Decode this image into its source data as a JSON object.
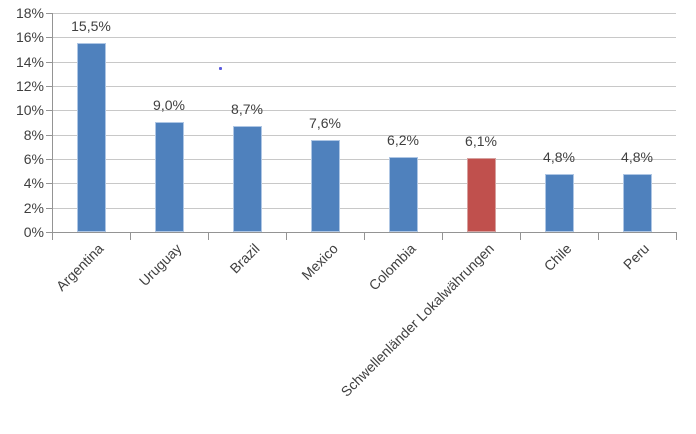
{
  "chart_data": {
    "type": "bar",
    "title": "",
    "xlabel": "",
    "ylabel": "",
    "categories": [
      "Argentina",
      "Uruguay",
      "Brazil",
      "Mexico",
      "Colombia",
      "Schwellenländer Lokalwährungen",
      "Chile",
      "Peru"
    ],
    "values": [
      15.5,
      9.0,
      8.7,
      7.6,
      6.2,
      6.1,
      4.8,
      4.8
    ],
    "value_labels": [
      "15,5%",
      "9,0%",
      "8,7%",
      "7,6%",
      "6,2%",
      "6,1%",
      "4,8%",
      "4,8%"
    ],
    "ylim": [
      0,
      18
    ],
    "ytick_step": 2,
    "ytick_labels": [
      "0%",
      "2%",
      "4%",
      "6%",
      "8%",
      "10%",
      "12%",
      "14%",
      "16%",
      "18%"
    ],
    "grid": true,
    "legend": false,
    "highlight_index": 5,
    "colors": {
      "bar": "#4f81bd",
      "bar_highlight": "#c0504d",
      "gridline": "#c8c8c8",
      "axis": "#949494",
      "text": "#3f3f3f"
    }
  }
}
